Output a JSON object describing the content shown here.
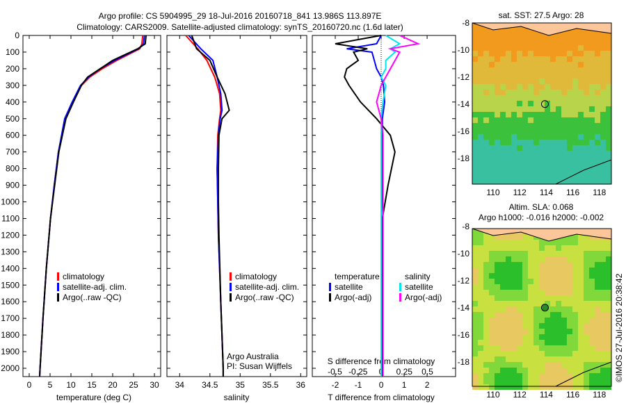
{
  "title": {
    "line1": "Argo profile: CS 5904995_29 18-Jul-2016 20160718_841 13.986S 113.897E",
    "line2": "Climatology: CARS2009. Satellite-adjusted climatology: synTS_20160720.nc (1.6d later)"
  },
  "side_label": "©IMOS 27-Jul-2016 20:38:42",
  "colors": {
    "climatology": "#ff0000",
    "satellite": "#0000ff",
    "argo": "#000000",
    "sal_satellite": "#00e5ee",
    "sal_argo": "#ff00ff"
  },
  "chart_data": [
    {
      "type": "line",
      "name": "temperature",
      "xlabel": "temperature (deg C)",
      "xlim": [
        -1.5,
        31.5
      ],
      "ylim": [
        2050,
        0
      ],
      "xticks": [
        0,
        5,
        10,
        15,
        20,
        25,
        30
      ],
      "yticks": [
        0,
        100,
        200,
        300,
        400,
        500,
        600,
        700,
        800,
        900,
        1000,
        1100,
        1200,
        1300,
        1400,
        1500,
        1600,
        1700,
        1800,
        1900,
        2000
      ],
      "legend": [
        "climatology",
        "satellite-adj. clim.",
        "Argo(..raw -QC)"
      ],
      "depth": [
        0,
        50,
        80,
        150,
        200,
        250,
        300,
        400,
        500,
        700,
        900,
        1100,
        1400,
        1700,
        2000,
        2050
      ],
      "series": [
        {
          "name": "climatology",
          "values": [
            27.2,
            27,
            26.5,
            21,
            17.5,
            14.5,
            12.5,
            10.5,
            8.7,
            7,
            6,
            5.1,
            4.1,
            3.3,
            2.6,
            2.5
          ]
        },
        {
          "name": "satellite",
          "values": [
            27.6,
            27.4,
            26.2,
            20.5,
            17,
            14.2,
            12.3,
            10.3,
            8.5,
            7,
            6,
            5.1,
            4.1,
            3.3,
            2.6,
            2.5
          ]
        },
        {
          "name": "argo",
          "values": [
            28,
            27.8,
            26,
            20,
            17,
            14,
            12.5,
            10.6,
            8.8,
            7.1,
            6.1,
            5.1,
            4.1,
            3.3,
            2.6,
            2.5
          ]
        }
      ]
    },
    {
      "type": "line",
      "name": "salinity",
      "xlabel": "salinity",
      "xlim": [
        33.79,
        36.1
      ],
      "ylim": [
        2050,
        0
      ],
      "xticks": [
        34,
        34.5,
        35,
        35.5,
        36
      ],
      "legend": [
        "climatology",
        "satellite-adj. clim.",
        "Argo(..raw -QC)"
      ],
      "annotation": [
        "Argo Australia",
        "PI: Susan Wijffels"
      ],
      "depth": [
        0,
        80,
        150,
        250,
        350,
        450,
        500,
        600,
        800,
        1000,
        1200,
        1600,
        2000,
        2050
      ],
      "series": [
        {
          "name": "climatology",
          "values": [
            34.1,
            34.3,
            34.45,
            34.58,
            34.66,
            34.68,
            34.66,
            34.63,
            34.62,
            34.63,
            34.64,
            34.68,
            34.72,
            34.72
          ]
        },
        {
          "name": "satellite",
          "values": [
            34.15,
            34.35,
            34.55,
            34.62,
            34.68,
            34.7,
            34.67,
            34.64,
            34.62,
            34.63,
            34.64,
            34.68,
            34.72,
            34.72
          ]
        },
        {
          "name": "argo",
          "values": [
            34.2,
            34.28,
            34.5,
            34.62,
            34.75,
            34.82,
            34.7,
            34.65,
            34.64,
            34.64,
            34.65,
            34.68,
            34.72,
            34.72
          ]
        }
      ]
    },
    {
      "type": "line",
      "name": "difference",
      "xlabel": "T difference from climatology",
      "xlabel2": "S difference from climatology",
      "xlim": [
        -3,
        3.24
      ],
      "ylim": [
        2050,
        0
      ],
      "xticks": [
        -2,
        -1,
        0,
        1,
        2
      ],
      "xticks2": [
        -0.5,
        -0.25,
        0,
        0.25,
        0.5
      ],
      "legend_headers": [
        "temperature",
        "salinity"
      ],
      "legend": [
        "satellite",
        "Argo(-adj)",
        "satellite",
        "Argo(-adj)"
      ],
      "depth": [
        0,
        50,
        80,
        100,
        150,
        200,
        250,
        300,
        400,
        500,
        600,
        700,
        900,
        1100,
        1400,
        1700,
        2000,
        2050
      ],
      "series": [
        {
          "name": "T satellite",
          "values": [
            0,
            -0.2,
            -1.5,
            -0.4,
            -0.3,
            -0.2,
            0,
            0.1,
            0.15,
            0.05,
            0.05,
            0.05,
            0.05,
            0,
            0,
            0,
            0,
            0
          ]
        },
        {
          "name": "T argo",
          "values": [
            0,
            -2,
            -0.6,
            -1.2,
            -1,
            -1.5,
            -1.6,
            -1.4,
            -0.9,
            -0.2,
            0.4,
            0.6,
            0.3,
            0.05,
            0.05,
            0.05,
            0.05,
            0.05
          ]
        },
        {
          "name": "S satellite",
          "values": [
            0.05,
            0.2,
            0.1,
            0.15,
            0.05,
            0.05,
            0,
            0.05,
            0.02,
            0,
            0,
            0,
            0,
            0,
            0,
            0,
            0,
            0
          ]
        },
        {
          "name": "S argo",
          "values": [
            0.2,
            0.4,
            0.1,
            0.2,
            0.15,
            0.1,
            0.05,
            0,
            -0.05,
            0,
            0.02,
            0.02,
            0.02,
            0.02,
            0.02,
            0.02,
            0.02,
            0.02
          ]
        }
      ]
    },
    {
      "type": "heatmap",
      "name": "sst-map",
      "title": "sat. SST: 27.5 Argo: 28",
      "xticks": [
        110,
        112,
        114,
        116,
        118
      ],
      "yticks": [
        -8,
        -10,
        -12,
        -14,
        -16,
        -18
      ],
      "argo_position": [
        113.897,
        -13.986
      ]
    },
    {
      "type": "heatmap",
      "name": "sla-map",
      "title": "Altim. SLA: 0.068",
      "title2": "Argo h1000: -0.016 h2000: -0.002",
      "xticks": [
        110,
        112,
        114,
        116,
        118
      ],
      "yticks": [
        -8,
        -10,
        -12,
        -14,
        -16,
        -18
      ],
      "argo_position": [
        113.897,
        -13.986
      ]
    }
  ]
}
